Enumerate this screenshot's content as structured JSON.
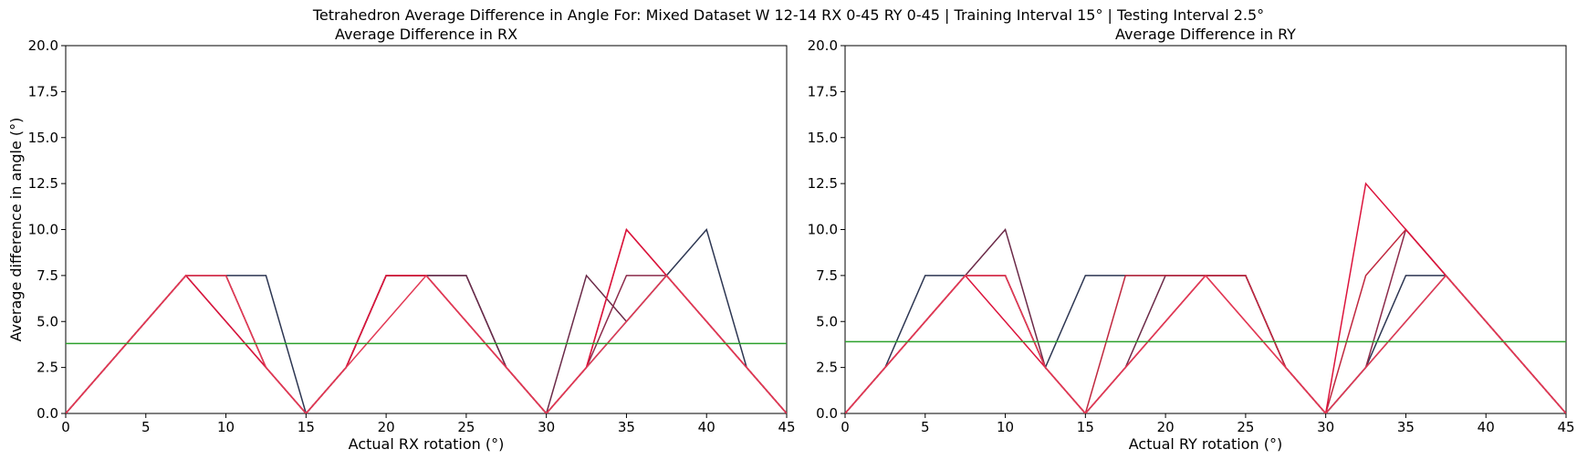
{
  "figure": {
    "suptitle": "Tetrahedron Average Difference in Angle For: Mixed Dataset W 12-14 RX 0-45 RY 0-45 | Training Interval 15° | Testing Interval 2.5°"
  },
  "chart_data": [
    {
      "type": "line",
      "title": "Average Difference in RX",
      "xlabel": "Actual RX rotation (°)",
      "ylabel": "Average difference in angle (°)",
      "xlim": [
        0,
        45
      ],
      "ylim": [
        0,
        20
      ],
      "xticks": [
        0,
        5,
        10,
        15,
        20,
        25,
        30,
        35,
        40,
        45
      ],
      "yticks": [
        0.0,
        2.5,
        5.0,
        7.5,
        10.0,
        12.5,
        15.0,
        17.5,
        20.0
      ],
      "xtick_labels": [
        "0",
        "5",
        "10",
        "15",
        "20",
        "25",
        "30",
        "35",
        "40",
        "45"
      ],
      "ytick_labels": [
        "0.0",
        "2.5",
        "5.0",
        "7.5",
        "10.0",
        "12.5",
        "15.0",
        "17.5",
        "20.0"
      ],
      "grid": false,
      "x": [
        0,
        2.5,
        5,
        7.5,
        10,
        12.5,
        15,
        17.5,
        20,
        22.5,
        25,
        27.5,
        30,
        32.5,
        35,
        37.5,
        40,
        42.5,
        45
      ],
      "series": [
        {
          "color": "#2d3652",
          "values": [
            0,
            2.5,
            5,
            7.5,
            7.5,
            7.5,
            0,
            2.5,
            7.5,
            7.5,
            7.5,
            2.5,
            0,
            2.5,
            5,
            7.5,
            10,
            2.5,
            0
          ]
        },
        {
          "color": "#6b2a48",
          "values": [
            0,
            2.5,
            5,
            7.5,
            7.5,
            2.5,
            0,
            2.5,
            7.5,
            7.5,
            7.5,
            2.5,
            0,
            7.5,
            5,
            7.5,
            5,
            2.5,
            0
          ]
        },
        {
          "color": "#8c2a4a",
          "values": [
            0,
            2.5,
            5,
            7.5,
            5,
            2.5,
            0,
            2.5,
            7.5,
            7.5,
            5,
            2.5,
            0,
            2.5,
            7.5,
            7.5,
            5,
            2.5,
            0
          ]
        },
        {
          "color": "#c0283f",
          "values": [
            0,
            2.5,
            5,
            7.5,
            7.5,
            2.5,
            0,
            2.5,
            7.5,
            7.5,
            5,
            2.5,
            0,
            2.5,
            10,
            7.5,
            5,
            2.5,
            0
          ]
        },
        {
          "color": "#dc143c",
          "values": [
            0,
            2.5,
            5,
            7.5,
            5,
            2.5,
            0,
            2.5,
            7.5,
            7.5,
            5,
            2.5,
            0,
            2.5,
            10,
            7.5,
            5,
            2.5,
            0
          ]
        },
        {
          "color": "#e23a55",
          "values": [
            0,
            2.5,
            5,
            7.5,
            7.5,
            2.5,
            0,
            2.5,
            5,
            7.5,
            5,
            2.5,
            0,
            2.5,
            5,
            7.5,
            5,
            2.5,
            0
          ]
        }
      ],
      "hline": {
        "value": 3.8,
        "color": "#2ca02c"
      }
    },
    {
      "type": "line",
      "title": "Average Difference in RY",
      "xlabel": "Actual RY rotation (°)",
      "ylabel": "",
      "xlim": [
        0,
        45
      ],
      "ylim": [
        0,
        20
      ],
      "xticks": [
        0,
        5,
        10,
        15,
        20,
        25,
        30,
        35,
        40,
        45
      ],
      "yticks": [
        0.0,
        2.5,
        5.0,
        7.5,
        10.0,
        12.5,
        15.0,
        17.5,
        20.0
      ],
      "xtick_labels": [
        "0",
        "5",
        "10",
        "15",
        "20",
        "25",
        "30",
        "35",
        "40",
        "45"
      ],
      "ytick_labels": [
        "0.0",
        "2.5",
        "5.0",
        "7.5",
        "10.0",
        "12.5",
        "15.0",
        "17.5",
        "20.0"
      ],
      "grid": false,
      "x": [
        0,
        2.5,
        5,
        7.5,
        10,
        12.5,
        15,
        17.5,
        20,
        22.5,
        25,
        27.5,
        30,
        32.5,
        35,
        37.5,
        40,
        42.5,
        45
      ],
      "series": [
        {
          "color": "#2d3652",
          "values": [
            0,
            2.5,
            7.5,
            7.5,
            7.5,
            2.5,
            7.5,
            7.5,
            7.5,
            7.5,
            7.5,
            2.5,
            0,
            2.5,
            7.5,
            7.5,
            5,
            2.5,
            0
          ]
        },
        {
          "color": "#6b2a48",
          "values": [
            0,
            2.5,
            5,
            7.5,
            10,
            2.5,
            0,
            2.5,
            7.5,
            7.5,
            7.5,
            2.5,
            0,
            2.5,
            5,
            7.5,
            5,
            2.5,
            0
          ]
        },
        {
          "color": "#8c2a4a",
          "values": [
            0,
            2.5,
            5,
            7.5,
            7.5,
            2.5,
            0,
            2.5,
            5,
            7.5,
            7.5,
            2.5,
            0,
            2.5,
            10,
            7.5,
            5,
            2.5,
            0
          ]
        },
        {
          "color": "#c0283f",
          "values": [
            0,
            2.5,
            5,
            7.5,
            7.5,
            2.5,
            0,
            7.5,
            7.5,
            7.5,
            7.5,
            2.5,
            0,
            7.5,
            10,
            7.5,
            5,
            2.5,
            0
          ]
        },
        {
          "color": "#dc143c",
          "values": [
            0,
            2.5,
            5,
            7.5,
            5,
            2.5,
            0,
            2.5,
            5,
            7.5,
            5,
            2.5,
            0,
            12.5,
            10,
            7.5,
            5,
            2.5,
            0
          ]
        },
        {
          "color": "#e23a55",
          "values": [
            0,
            2.5,
            5,
            7.5,
            7.5,
            2.5,
            0,
            2.5,
            5,
            7.5,
            5,
            2.5,
            0,
            2.5,
            5,
            7.5,
            5,
            2.5,
            0
          ]
        }
      ],
      "hline": {
        "value": 3.9,
        "color": "#2ca02c"
      }
    }
  ]
}
